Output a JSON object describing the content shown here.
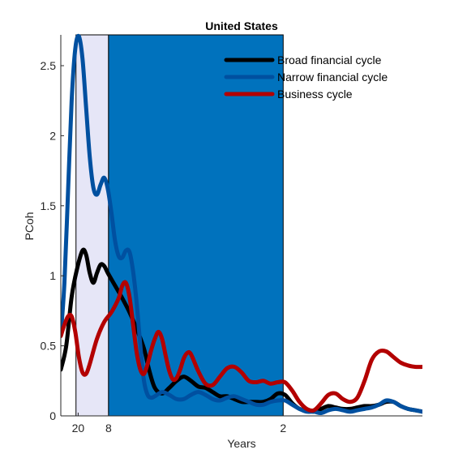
{
  "chart_data": {
    "type": "line",
    "title": "United States",
    "xlabel": "Years",
    "ylabel": "PCoh",
    "xlim": [
      0,
      100
    ],
    "ylim": [
      0,
      2.72
    ],
    "y_ticks": [
      0,
      0.5,
      1,
      1.5,
      2,
      2.5
    ],
    "y_tick_labels": [
      "0",
      "0.5",
      "1",
      "1.5",
      "2",
      "2.5"
    ],
    "x_ticks": [
      {
        "x": 4.8,
        "label": "20"
      },
      {
        "x": 13.2,
        "label": "8"
      },
      {
        "x": 61.5,
        "label": "2"
      }
    ],
    "bands": [
      {
        "from": 4.2,
        "to": 13.2,
        "color": "#e6e6f7",
        "edge": "#000000"
      },
      {
        "from": 13.2,
        "to": 61.5,
        "color": "#0072bd",
        "edge": "#000000"
      }
    ],
    "legend_position": "top-right",
    "grid": false,
    "series": [
      {
        "name": "Broad financial cycle",
        "color": "#000000",
        "points": [
          [
            0,
            0.33
          ],
          [
            1.5,
            0.5
          ],
          [
            3,
            0.85
          ],
          [
            4.5,
            1.05
          ],
          [
            6,
            1.18
          ],
          [
            7,
            1.15
          ],
          [
            8,
            1.02
          ],
          [
            9,
            0.95
          ],
          [
            10,
            1.02
          ],
          [
            11,
            1.08
          ],
          [
            12,
            1.07
          ],
          [
            13,
            1.02
          ],
          [
            15,
            0.93
          ],
          [
            17,
            0.84
          ],
          [
            19,
            0.74
          ],
          [
            21,
            0.62
          ],
          [
            23,
            0.48
          ],
          [
            24.5,
            0.32
          ],
          [
            26,
            0.2
          ],
          [
            28,
            0.16
          ],
          [
            30,
            0.2
          ],
          [
            32,
            0.25
          ],
          [
            34,
            0.28
          ],
          [
            36,
            0.25
          ],
          [
            38,
            0.21
          ],
          [
            40,
            0.2
          ],
          [
            42,
            0.17
          ],
          [
            44,
            0.14
          ],
          [
            46,
            0.14
          ],
          [
            48,
            0.12
          ],
          [
            50,
            0.1
          ],
          [
            52,
            0.1
          ],
          [
            54,
            0.1
          ],
          [
            56,
            0.1
          ],
          [
            58,
            0.12
          ],
          [
            60,
            0.16
          ],
          [
            62,
            0.15
          ],
          [
            64,
            0.09
          ],
          [
            66,
            0.05
          ],
          [
            68,
            0.04
          ],
          [
            70,
            0.03
          ],
          [
            72,
            0.05
          ],
          [
            74,
            0.07
          ],
          [
            76,
            0.06
          ],
          [
            78,
            0.05
          ],
          [
            80,
            0.05
          ],
          [
            82,
            0.06
          ],
          [
            84,
            0.07
          ],
          [
            86,
            0.07
          ],
          [
            88,
            0.08
          ],
          [
            90,
            0.1
          ],
          [
            92,
            0.1
          ],
          [
            94,
            0.07
          ],
          [
            96,
            0.05
          ],
          [
            98,
            0.04
          ],
          [
            100,
            0.03
          ]
        ]
      },
      {
        "name": "Narrow financial cycle",
        "color": "#0050a0",
        "points": [
          [
            0,
            0.58
          ],
          [
            1,
            0.95
          ],
          [
            2,
            1.6
          ],
          [
            3,
            2.25
          ],
          [
            4,
            2.62
          ],
          [
            5,
            2.71
          ],
          [
            6,
            2.55
          ],
          [
            7,
            2.2
          ],
          [
            8,
            1.85
          ],
          [
            9,
            1.63
          ],
          [
            10,
            1.58
          ],
          [
            11,
            1.65
          ],
          [
            12,
            1.7
          ],
          [
            13,
            1.62
          ],
          [
            14,
            1.45
          ],
          [
            15,
            1.25
          ],
          [
            16,
            1.14
          ],
          [
            17,
            1.13
          ],
          [
            18,
            1.18
          ],
          [
            19,
            1.17
          ],
          [
            20,
            1.03
          ],
          [
            21,
            0.8
          ],
          [
            22,
            0.5
          ],
          [
            23,
            0.25
          ],
          [
            24,
            0.15
          ],
          [
            25,
            0.13
          ],
          [
            26,
            0.14
          ],
          [
            28,
            0.17
          ],
          [
            30,
            0.15
          ],
          [
            32,
            0.12
          ],
          [
            34,
            0.12
          ],
          [
            36,
            0.15
          ],
          [
            38,
            0.17
          ],
          [
            40,
            0.15
          ],
          [
            42,
            0.12
          ],
          [
            44,
            0.11
          ],
          [
            46,
            0.13
          ],
          [
            48,
            0.14
          ],
          [
            50,
            0.12
          ],
          [
            52,
            0.1
          ],
          [
            54,
            0.08
          ],
          [
            56,
            0.08
          ],
          [
            58,
            0.1
          ],
          [
            60,
            0.11
          ],
          [
            62,
            0.11
          ],
          [
            64,
            0.08
          ],
          [
            66,
            0.05
          ],
          [
            68,
            0.03
          ],
          [
            70,
            0.03
          ],
          [
            72,
            0.02
          ],
          [
            74,
            0.04
          ],
          [
            76,
            0.05
          ],
          [
            78,
            0.04
          ],
          [
            80,
            0.03
          ],
          [
            82,
            0.04
          ],
          [
            84,
            0.05
          ],
          [
            86,
            0.06
          ],
          [
            88,
            0.08
          ],
          [
            90,
            0.11
          ],
          [
            92,
            0.1
          ],
          [
            94,
            0.07
          ],
          [
            96,
            0.05
          ],
          [
            98,
            0.04
          ],
          [
            100,
            0.03
          ]
        ]
      },
      {
        "name": "Business cycle",
        "color": "#b30000",
        "points": [
          [
            0,
            0.57
          ],
          [
            1,
            0.65
          ],
          [
            2,
            0.71
          ],
          [
            3,
            0.71
          ],
          [
            4,
            0.6
          ],
          [
            5,
            0.42
          ],
          [
            6,
            0.31
          ],
          [
            7,
            0.3
          ],
          [
            8,
            0.37
          ],
          [
            10,
            0.55
          ],
          [
            12,
            0.67
          ],
          [
            14,
            0.74
          ],
          [
            16,
            0.84
          ],
          [
            17,
            0.93
          ],
          [
            18,
            0.95
          ],
          [
            19,
            0.85
          ],
          [
            20,
            0.65
          ],
          [
            21,
            0.45
          ],
          [
            22,
            0.33
          ],
          [
            23,
            0.3
          ],
          [
            24,
            0.37
          ],
          [
            25,
            0.47
          ],
          [
            26,
            0.55
          ],
          [
            27,
            0.6
          ],
          [
            28,
            0.55
          ],
          [
            29,
            0.43
          ],
          [
            30,
            0.32
          ],
          [
            31,
            0.26
          ],
          [
            32,
            0.27
          ],
          [
            33,
            0.33
          ],
          [
            34,
            0.41
          ],
          [
            35,
            0.45
          ],
          [
            36,
            0.44
          ],
          [
            38,
            0.32
          ],
          [
            40,
            0.23
          ],
          [
            42,
            0.22
          ],
          [
            44,
            0.28
          ],
          [
            46,
            0.34
          ],
          [
            48,
            0.35
          ],
          [
            50,
            0.31
          ],
          [
            52,
            0.25
          ],
          [
            54,
            0.24
          ],
          [
            56,
            0.25
          ],
          [
            58,
            0.23
          ],
          [
            60,
            0.24
          ],
          [
            62,
            0.24
          ],
          [
            64,
            0.18
          ],
          [
            66,
            0.1
          ],
          [
            68,
            0.05
          ],
          [
            70,
            0.04
          ],
          [
            72,
            0.09
          ],
          [
            74,
            0.15
          ],
          [
            76,
            0.16
          ],
          [
            78,
            0.12
          ],
          [
            80,
            0.1
          ],
          [
            82,
            0.13
          ],
          [
            84,
            0.25
          ],
          [
            86,
            0.4
          ],
          [
            88,
            0.46
          ],
          [
            90,
            0.46
          ],
          [
            92,
            0.42
          ],
          [
            94,
            0.38
          ],
          [
            96,
            0.36
          ],
          [
            98,
            0.35
          ],
          [
            100,
            0.35
          ]
        ]
      }
    ]
  }
}
